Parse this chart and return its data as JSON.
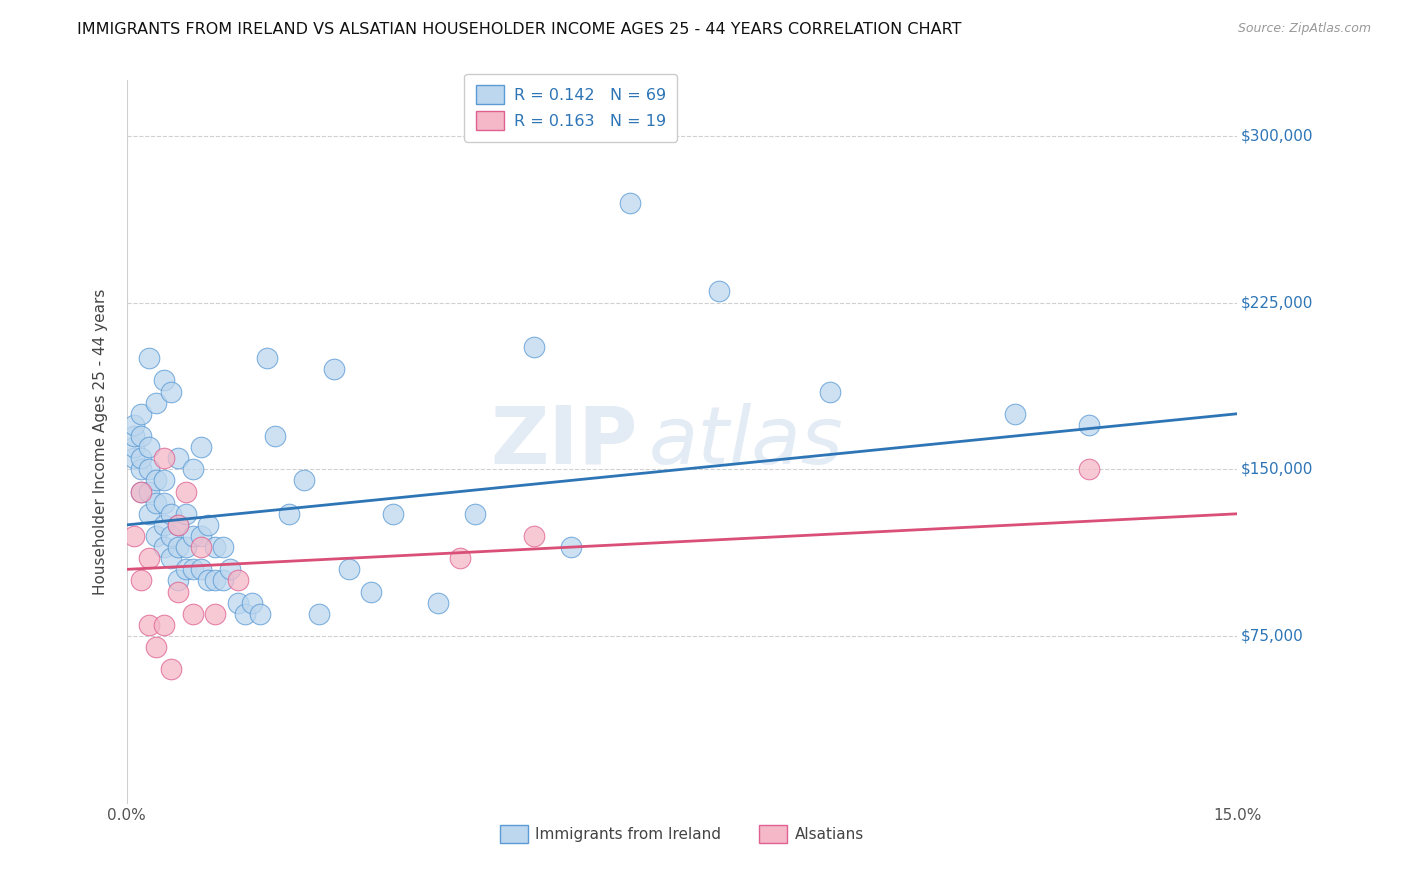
{
  "title": "IMMIGRANTS FROM IRELAND VS ALSATIAN HOUSEHOLDER INCOME AGES 25 - 44 YEARS CORRELATION CHART",
  "source": "Source: ZipAtlas.com",
  "ylabel": "Householder Income Ages 25 - 44 years",
  "x_min": 0.0,
  "x_max": 0.15,
  "y_min": 0,
  "y_max": 325000,
  "x_ticks": [
    0.0,
    0.03,
    0.06,
    0.09,
    0.12,
    0.15
  ],
  "y_tick_labels": [
    "$75,000",
    "$150,000",
    "$225,000",
    "$300,000"
  ],
  "y_ticks": [
    75000,
    150000,
    225000,
    300000
  ],
  "ireland_color": "#5b9bd5",
  "ireland_fill": "#bdd7ee",
  "alsatian_color": "#e06090",
  "alsatian_fill": "#f4b8c8",
  "line_ireland_color": "#2e75b6",
  "line_alsatian_color": "#d94f78",
  "watermark_zip": "ZIP",
  "watermark_atlas": "atlas",
  "ireland_R": 0.142,
  "ireland_N": 69,
  "alsatian_R": 0.163,
  "alsatian_N": 19,
  "ireland_x": [
    0.001,
    0.001,
    0.001,
    0.001,
    0.002,
    0.002,
    0.002,
    0.002,
    0.002,
    0.003,
    0.003,
    0.003,
    0.003,
    0.003,
    0.004,
    0.004,
    0.004,
    0.004,
    0.005,
    0.005,
    0.005,
    0.005,
    0.005,
    0.006,
    0.006,
    0.006,
    0.006,
    0.007,
    0.007,
    0.007,
    0.007,
    0.008,
    0.008,
    0.008,
    0.009,
    0.009,
    0.009,
    0.01,
    0.01,
    0.01,
    0.011,
    0.011,
    0.012,
    0.012,
    0.013,
    0.013,
    0.014,
    0.015,
    0.016,
    0.017,
    0.018,
    0.019,
    0.02,
    0.022,
    0.024,
    0.026,
    0.028,
    0.03,
    0.033,
    0.036,
    0.042,
    0.047,
    0.055,
    0.06,
    0.068,
    0.08,
    0.095,
    0.12,
    0.13
  ],
  "ireland_y": [
    155000,
    160000,
    165000,
    170000,
    140000,
    150000,
    155000,
    165000,
    175000,
    130000,
    140000,
    150000,
    160000,
    200000,
    120000,
    135000,
    145000,
    180000,
    115000,
    125000,
    135000,
    145000,
    190000,
    110000,
    120000,
    130000,
    185000,
    100000,
    115000,
    125000,
    155000,
    105000,
    115000,
    130000,
    105000,
    120000,
    150000,
    105000,
    120000,
    160000,
    100000,
    125000,
    100000,
    115000,
    100000,
    115000,
    105000,
    90000,
    85000,
    90000,
    85000,
    200000,
    165000,
    130000,
    145000,
    85000,
    195000,
    105000,
    95000,
    130000,
    90000,
    130000,
    205000,
    115000,
    270000,
    230000,
    185000,
    175000,
    170000
  ],
  "alsatian_x": [
    0.001,
    0.002,
    0.002,
    0.003,
    0.003,
    0.004,
    0.005,
    0.005,
    0.006,
    0.007,
    0.007,
    0.008,
    0.009,
    0.01,
    0.012,
    0.015,
    0.045,
    0.055,
    0.13
  ],
  "alsatian_y": [
    120000,
    100000,
    140000,
    80000,
    110000,
    70000,
    80000,
    155000,
    60000,
    95000,
    125000,
    140000,
    85000,
    115000,
    85000,
    100000,
    110000,
    120000,
    150000
  ],
  "ireland_line_x0": 0.0,
  "ireland_line_y0": 125000,
  "ireland_line_x1": 0.15,
  "ireland_line_y1": 175000,
  "alsatian_line_x0": 0.0,
  "alsatian_line_y0": 105000,
  "alsatian_line_x1": 0.15,
  "alsatian_line_y1": 130000
}
